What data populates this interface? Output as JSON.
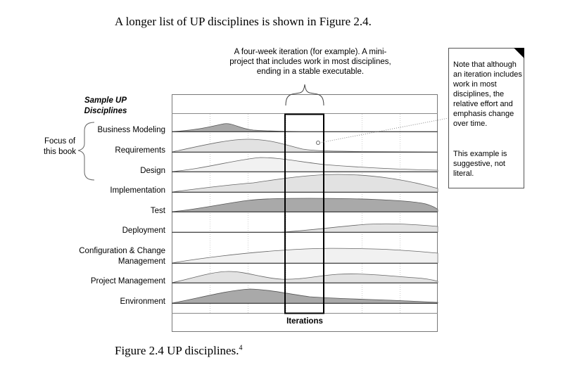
{
  "intro_text": "A longer list of UP disciplines is shown in Figure 2.4.",
  "iteration_note": "A four-week iteration (for example). A mini-project that includes work in most disciplines, ending in a stable executable.",
  "sample_title": "Sample UP Disciplines",
  "focus_label": "Focus of this book",
  "disciplines": [
    {
      "label": "Business Modeling"
    },
    {
      "label": "Requirements"
    },
    {
      "label": "Design"
    },
    {
      "label": "Implementation"
    },
    {
      "label": "Test"
    },
    {
      "label": "Deployment"
    },
    {
      "label": "Configuration & Change Management"
    },
    {
      "label": "Project Management"
    },
    {
      "label": "Environment"
    }
  ],
  "note_text": "Note that although an iteration includes work in most disciplines, the relative effort and emphasis change over time.",
  "note_text_2": "This example is suggestive, not literal.",
  "iterations_label": "Iterations",
  "caption": "Figure 2.4 UP disciplines.",
  "caption_footnote": "4",
  "colors": {
    "dark_fill": "#a9a9a9",
    "light_fill": "#e2e2e2",
    "grid": "#cfcfcf"
  }
}
